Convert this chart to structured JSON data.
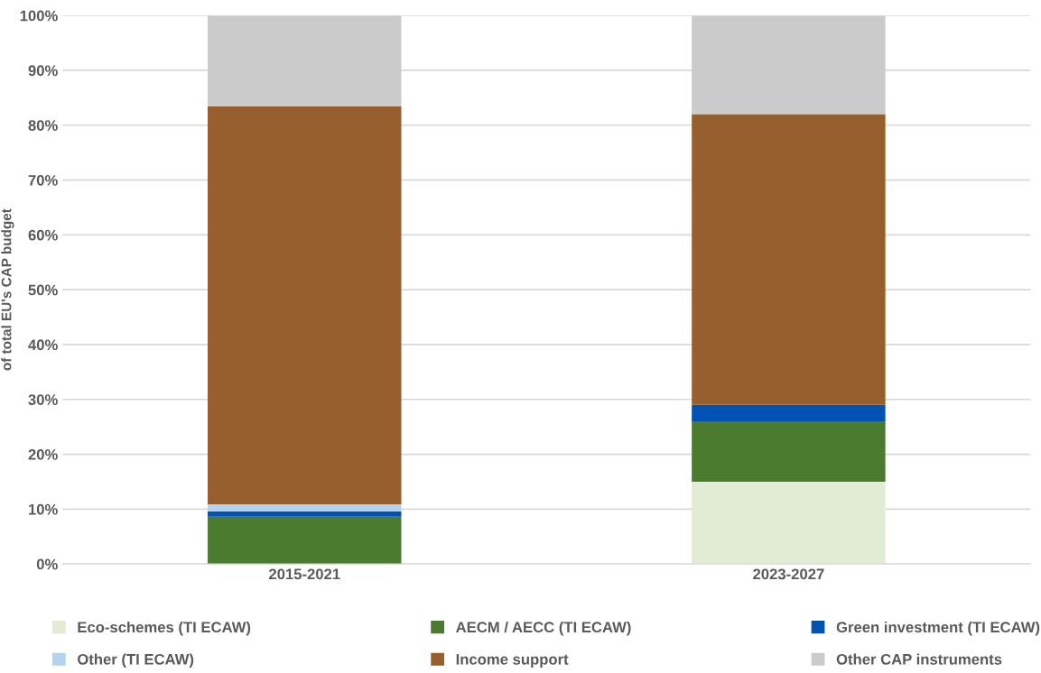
{
  "chart_data": {
    "type": "bar",
    "stacked": true,
    "ylabel": "of total EU's CAP budget",
    "categories": [
      "2015-2021",
      "2023-2027"
    ],
    "series": [
      {
        "name": "Eco-schemes (TI ECAW)",
        "color": "#e2ecd5",
        "values": [
          0,
          15
        ]
      },
      {
        "name": "AECM / AECC (TI ECAW)",
        "color": "#4a7b2f",
        "values": [
          8.6,
          11
        ]
      },
      {
        "name": "Green investment (TI ECAW)",
        "color": "#0053b3",
        "values": [
          1.0,
          3
        ]
      },
      {
        "name": "Other (TI ECAW)",
        "color": "#b4d3ef",
        "values": [
          1.3,
          0
        ]
      },
      {
        "name": "Income support",
        "color": "#975f2d",
        "values": [
          72.5,
          53
        ]
      },
      {
        "name": "Other CAP instruments",
        "color": "#cbcbcb",
        "values": [
          16.6,
          18
        ]
      }
    ],
    "ylim": [
      0,
      100
    ],
    "yticks": [
      {
        "value": 0,
        "label": "0%"
      },
      {
        "value": 10,
        "label": "10%"
      },
      {
        "value": 20,
        "label": "20%"
      },
      {
        "value": 30,
        "label": "30%"
      },
      {
        "value": 40,
        "label": "40%"
      },
      {
        "value": 50,
        "label": "50%"
      },
      {
        "value": 60,
        "label": "60%"
      },
      {
        "value": 70,
        "label": "70%"
      },
      {
        "value": 80,
        "label": "80%"
      },
      {
        "value": 90,
        "label": "90%"
      },
      {
        "value": 100,
        "label": "100%"
      }
    ],
    "grid": "y",
    "legend": "bottom"
  }
}
